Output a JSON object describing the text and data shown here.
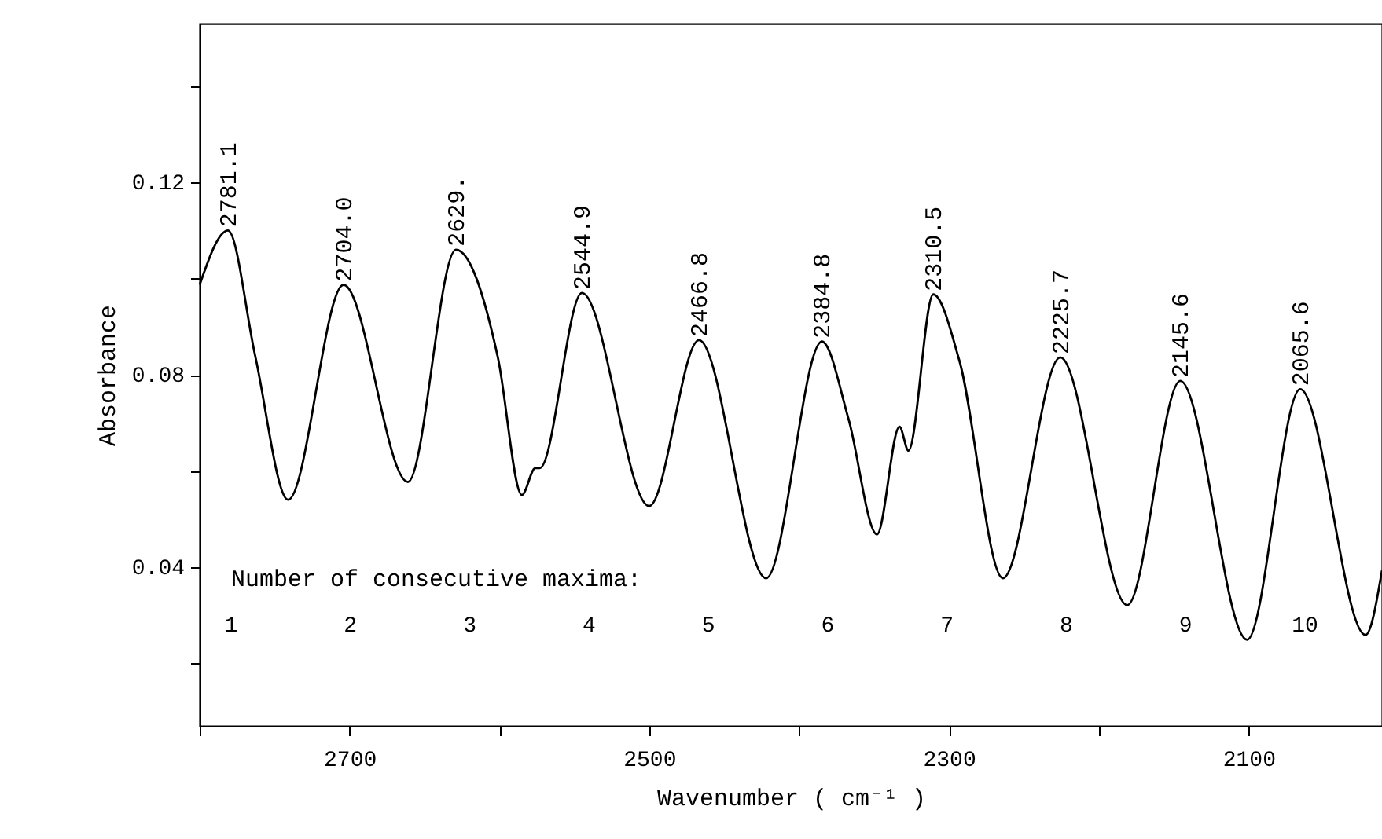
{
  "chart_data": {
    "type": "line",
    "xlabel": "Wavenumber ( cm⁻¹ )",
    "ylabel": "Absorbance",
    "x": [
      2800,
      2781.1,
      2763,
      2741,
      2704.0,
      2661,
      2629,
      2601,
      2585,
      2576,
      2573,
      2544.9,
      2500,
      2466.8,
      2422,
      2384.8,
      2367,
      2348,
      2333,
      2327,
      2310.5,
      2293,
      2264,
      2225.7,
      2181,
      2145.6,
      2101,
      2065.6,
      2022,
      2011
    ],
    "series": [
      {
        "color": "#000000",
        "values": [
          0.0987,
          0.11,
          0.084,
          0.054,
          0.0987,
          0.0577,
          0.106,
          0.0836,
          0.055,
          0.0606,
          0.0606,
          0.097,
          0.0527,
          0.0872,
          0.0377,
          0.0869,
          0.0708,
          0.0468,
          0.0692,
          0.0642,
          0.0967,
          0.0829,
          0.0377,
          0.0836,
          0.0321,
          0.0787,
          0.0249,
          0.077,
          0.0259,
          0.0393
        ]
      }
    ],
    "xlim": [
      2800,
      2011
    ],
    "xticks": [
      {
        "value": 2800,
        "label": null
      },
      2700,
      {
        "value": 2600,
        "label": null
      },
      2500,
      {
        "value": 2400,
        "label": null
      },
      2300,
      {
        "value": 2200,
        "label": null
      },
      2100
    ],
    "ylim": [
      0.007,
      0.153
    ],
    "yticks": [
      {
        "value": 0.02,
        "label": null
      },
      0.04,
      {
        "value": 0.06,
        "label": null
      },
      0.08,
      {
        "value": 0.1,
        "label": null
      },
      0.12,
      {
        "value": 0.14,
        "label": null
      }
    ],
    "grid": false,
    "annotations": [
      {
        "text": "2781.1",
        "x": 2781.1,
        "y": 0.11
      },
      {
        "text": "2704.0",
        "x": 2704.0,
        "y": 0.0987
      },
      {
        "text": "2629.",
        "x": 2629,
        "y": 0.106
      },
      {
        "text": "2544.9",
        "x": 2544.9,
        "y": 0.097
      },
      {
        "text": "2466.8",
        "x": 2466.8,
        "y": 0.0872
      },
      {
        "text": "2384.8",
        "x": 2384.8,
        "y": 0.0869
      },
      {
        "text": "2310.5",
        "x": 2310.5,
        "y": 0.0967
      },
      {
        "text": "2225.7",
        "x": 2225.7,
        "y": 0.0836
      },
      {
        "text": "2145.6",
        "x": 2145.6,
        "y": 0.0787
      },
      {
        "text": "2065.6",
        "x": 2065.6,
        "y": 0.077
      },
      "Number of consecutive maxima:",
      "1",
      "2",
      "3",
      "4",
      "5",
      "6",
      "7",
      "8",
      "9",
      "10"
    ]
  }
}
